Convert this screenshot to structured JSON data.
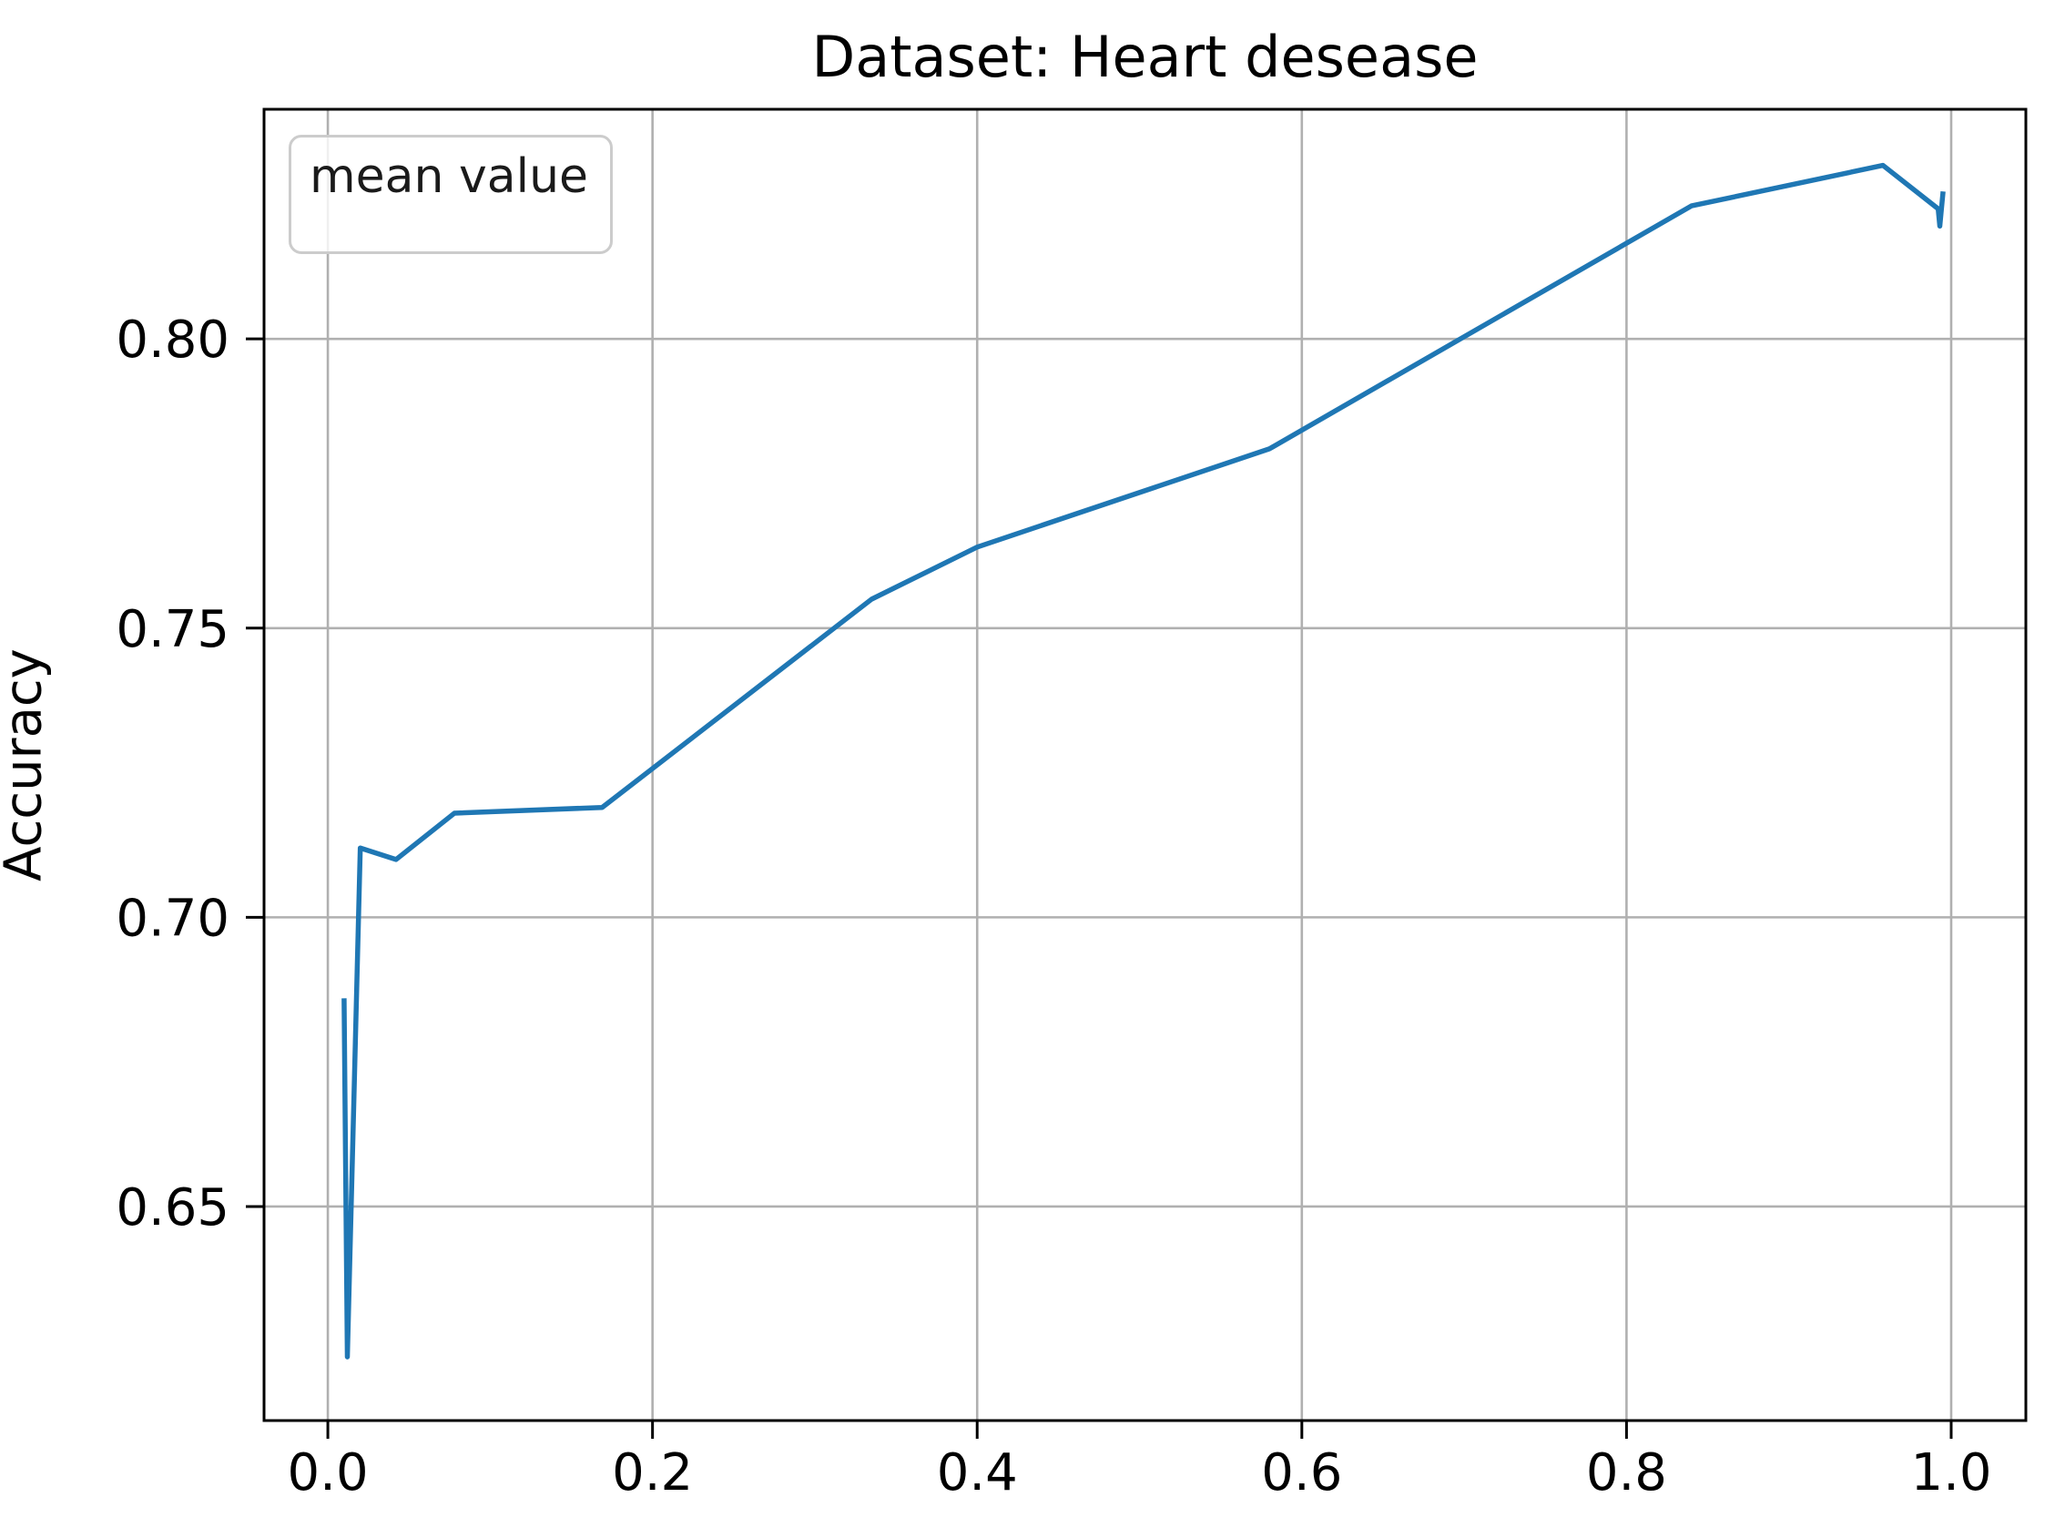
{
  "figure": {
    "title": "Dataset: Heart desease",
    "ylabel": "Accuracy",
    "legend": {
      "label": "mean value",
      "position": "upper left"
    },
    "colors": {
      "line": "#1f77b4",
      "grid": "#b0b0b0",
      "spine": "#000000",
      "tick_text": "#000000",
      "legend_border": "#cccccc",
      "background": "#ffffff"
    }
  },
  "chart_data": {
    "type": "line",
    "title": "Dataset: Heart desease",
    "xlabel": "",
    "ylabel": "Accuracy",
    "legend_entries": [
      "mean value"
    ],
    "legend_position": "upper left",
    "grid": true,
    "xlim": [
      -0.0393,
      1.046
    ],
    "ylim": [
      0.613,
      0.8397
    ],
    "x_ticks": [
      0.0,
      0.2,
      0.4,
      0.6,
      0.8,
      1.0
    ],
    "x_tick_labels": [
      "0.0",
      "0.2",
      "0.4",
      "0.6",
      "0.8",
      "1.0"
    ],
    "y_ticks": [
      0.65,
      0.7,
      0.75,
      0.8
    ],
    "y_tick_labels": [
      "0.65",
      "0.70",
      "0.75",
      "0.80"
    ],
    "series": [
      {
        "name": "mean value",
        "color": "#1f77b4",
        "points": [
          [
            0.01,
            0.686
          ],
          [
            0.012,
            0.624
          ],
          [
            0.02,
            0.712
          ],
          [
            0.042,
            0.71
          ],
          [
            0.078,
            0.718
          ],
          [
            0.169,
            0.719
          ],
          [
            0.335,
            0.755
          ],
          [
            0.4,
            0.764
          ],
          [
            0.58,
            0.781
          ],
          [
            0.84,
            0.823
          ],
          [
            0.958,
            0.83
          ],
          [
            0.992,
            0.8225
          ],
          [
            0.993,
            0.8195
          ],
          [
            0.995,
            0.8255
          ]
        ]
      }
    ]
  }
}
